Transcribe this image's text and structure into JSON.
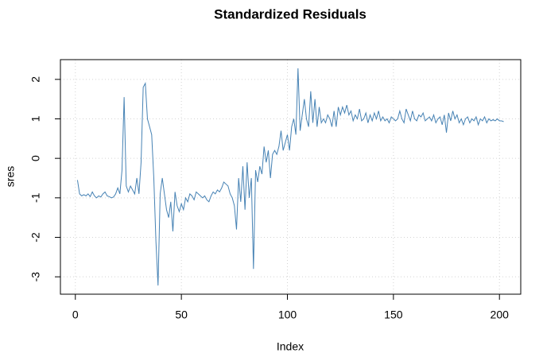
{
  "chart_data": {
    "type": "line",
    "title": "Standardized Residuals",
    "xlabel": "Index",
    "ylabel": "sres",
    "x": [
      1,
      2,
      3,
      4,
      5,
      6,
      7,
      8,
      9,
      10,
      11,
      12,
      13,
      14,
      15,
      16,
      17,
      18,
      19,
      20,
      21,
      22,
      23,
      24,
      25,
      26,
      27,
      28,
      29,
      30,
      31,
      32,
      33,
      34,
      35,
      36,
      37,
      38,
      39,
      40,
      41,
      42,
      43,
      44,
      45,
      46,
      47,
      48,
      49,
      50,
      51,
      52,
      53,
      54,
      55,
      56,
      57,
      58,
      59,
      60,
      61,
      62,
      63,
      64,
      65,
      66,
      67,
      68,
      69,
      70,
      71,
      72,
      73,
      74,
      75,
      76,
      77,
      78,
      79,
      80,
      81,
      82,
      83,
      84,
      85,
      86,
      87,
      88,
      89,
      90,
      91,
      92,
      93,
      94,
      95,
      96,
      97,
      98,
      99,
      100,
      101,
      102,
      103,
      104,
      105,
      106,
      107,
      108,
      109,
      110,
      111,
      112,
      113,
      114,
      115,
      116,
      117,
      118,
      119,
      120,
      121,
      122,
      123,
      124,
      125,
      126,
      127,
      128,
      129,
      130,
      131,
      132,
      133,
      134,
      135,
      136,
      137,
      138,
      139,
      140,
      141,
      142,
      143,
      144,
      145,
      146,
      147,
      148,
      149,
      150,
      151,
      152,
      153,
      154,
      155,
      156,
      157,
      158,
      159,
      160,
      161,
      162,
      163,
      164,
      165,
      166,
      167,
      168,
      169,
      170,
      171,
      172,
      173,
      174,
      175,
      176,
      177,
      178,
      179,
      180,
      181,
      182,
      183,
      184,
      185,
      186,
      187,
      188,
      189,
      190,
      191,
      192,
      193,
      194,
      195,
      196,
      197,
      198,
      199,
      200,
      201,
      202
    ],
    "series": [
      {
        "name": "sres",
        "color": "#4682b4",
        "values": [
          -0.55,
          -0.9,
          -0.95,
          -0.92,
          -0.95,
          -0.9,
          -0.97,
          -0.85,
          -0.95,
          -1.0,
          -0.95,
          -0.98,
          -0.9,
          -0.85,
          -0.95,
          -0.97,
          -1.0,
          -0.98,
          -0.9,
          -0.75,
          -0.9,
          -0.3,
          1.55,
          -0.7,
          -0.85,
          -0.7,
          -0.8,
          -0.9,
          -0.5,
          -0.9,
          -0.1,
          1.8,
          1.9,
          1.0,
          0.8,
          0.6,
          -0.5,
          -2.1,
          -3.22,
          -0.9,
          -0.5,
          -0.9,
          -1.3,
          -1.5,
          -1.1,
          -1.85,
          -0.85,
          -1.2,
          -1.35,
          -1.15,
          -1.3,
          -1.0,
          -1.1,
          -0.9,
          -0.95,
          -1.05,
          -0.85,
          -0.9,
          -0.95,
          -1.0,
          -0.95,
          -1.05,
          -1.1,
          -0.95,
          -0.85,
          -0.9,
          -0.8,
          -0.85,
          -0.75,
          -0.6,
          -0.65,
          -0.7,
          -0.9,
          -1.0,
          -1.2,
          -1.8,
          -0.5,
          -1.1,
          -0.2,
          -1.3,
          -0.1,
          -1.0,
          -0.5,
          -2.8,
          -0.3,
          -0.6,
          -0.2,
          -0.4,
          0.3,
          -0.1,
          0.2,
          -0.5,
          0.1,
          0.2,
          0.1,
          0.3,
          0.7,
          0.2,
          0.4,
          0.6,
          0.2,
          0.8,
          1.0,
          0.6,
          2.28,
          0.7,
          1.1,
          1.5,
          1.0,
          0.8,
          1.7,
          0.9,
          1.5,
          0.8,
          1.3,
          0.9,
          1.0,
          0.9,
          1.1,
          1.0,
          0.8,
          1.2,
          0.8,
          1.3,
          1.1,
          1.3,
          1.15,
          1.35,
          1.1,
          1.2,
          0.95,
          1.1,
          1.0,
          1.25,
          0.95,
          1.0,
          1.15,
          0.9,
          1.1,
          0.95,
          1.15,
          1.0,
          1.2,
          0.95,
          1.05,
          0.95,
          1.0,
          0.9,
          1.05,
          1.0,
          0.95,
          1.0,
          1.2,
          1.0,
          0.9,
          1.25,
          1.1,
          0.95,
          1.2,
          1.0,
          0.95,
          1.1,
          1.05,
          1.15,
          0.95,
          1.0,
          1.05,
          0.95,
          1.1,
          0.9,
          1.0,
          1.05,
          0.85,
          1.1,
          0.65,
          1.15,
          0.95,
          1.2,
          1.0,
          1.1,
          0.9,
          1.0,
          0.85,
          1.0,
          1.05,
          0.9,
          1.0,
          0.95,
          1.05,
          0.85,
          1.0,
          0.95,
          1.05,
          0.9,
          1.0,
          0.95,
          0.98,
          0.95,
          1.0,
          0.95,
          0.95,
          0.93
        ]
      }
    ],
    "xlim": [
      -7.04,
      210.04
    ],
    "ylim": [
      -3.44,
      2.5
    ],
    "xticks": [
      0,
      50,
      100,
      150,
      200
    ],
    "yticks": [
      -3,
      -2,
      -1,
      0,
      1,
      2
    ],
    "grid": true
  }
}
